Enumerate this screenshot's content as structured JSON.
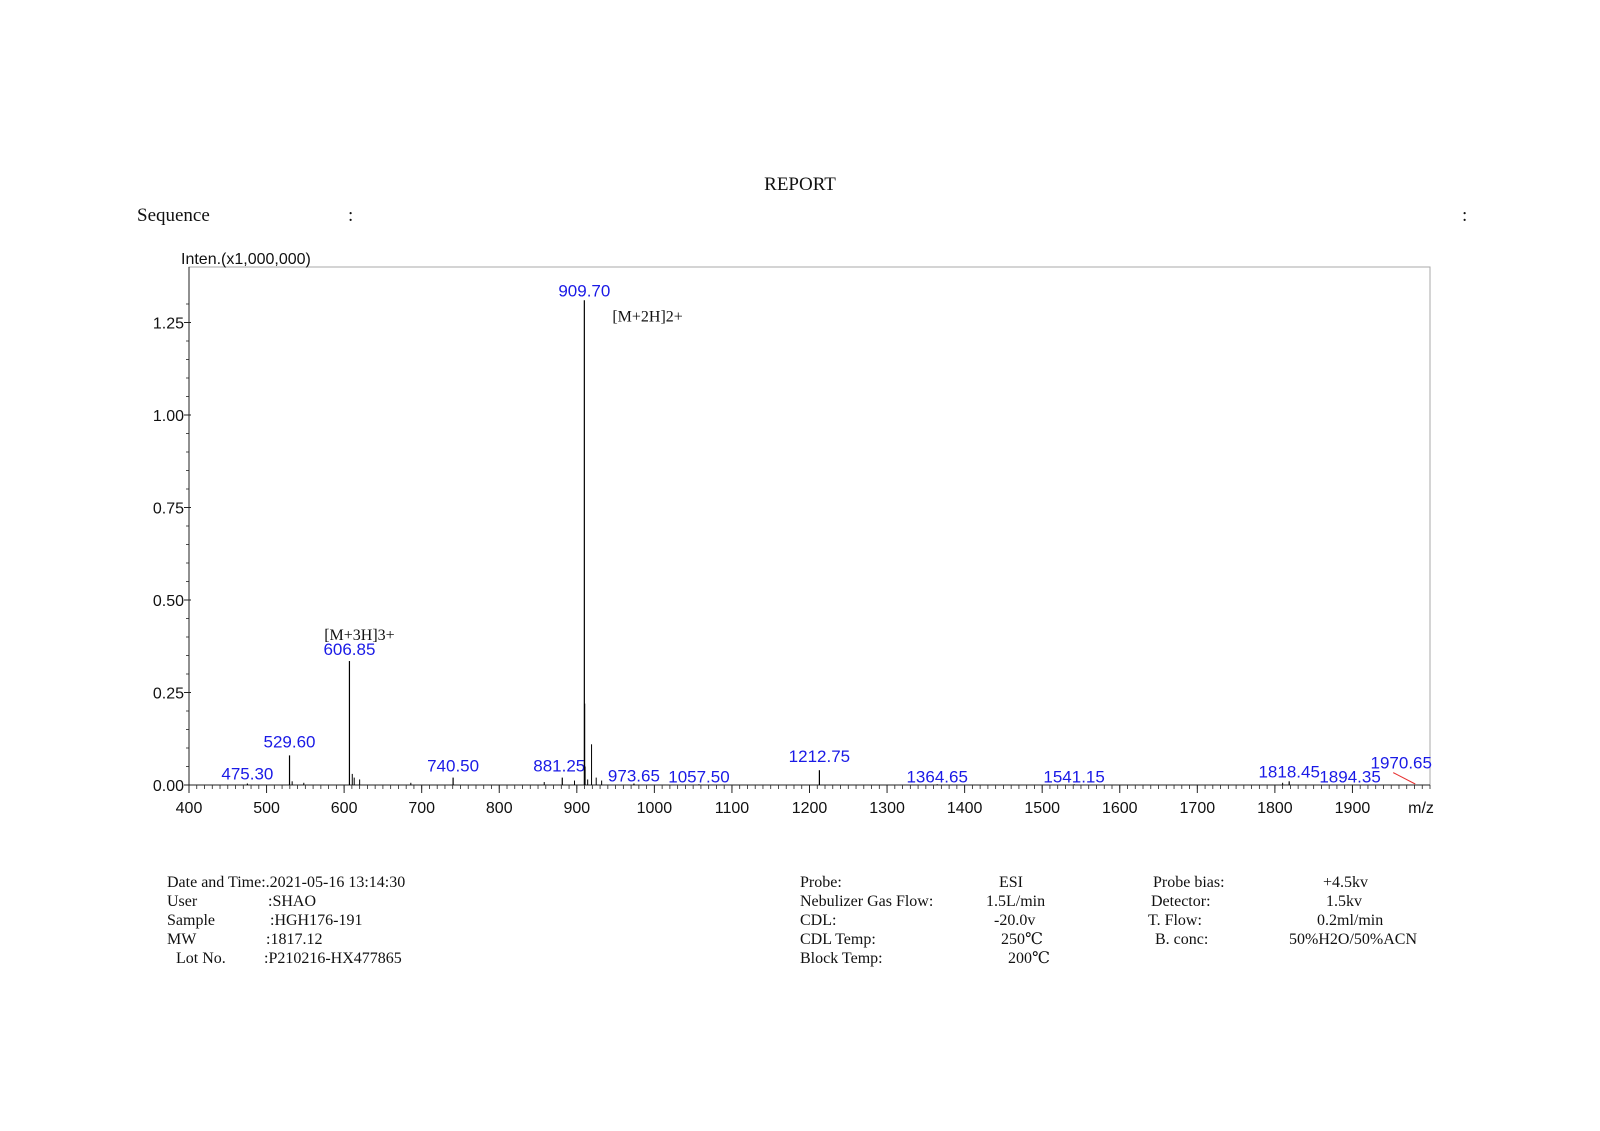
{
  "report": {
    "title": "REPORT",
    "sequence_label": "Sequence",
    "sequence_colon_left": ":",
    "sequence_colon_right": ":"
  },
  "colors": {
    "peak_label": "#1a1ae6",
    "axis": "#222222",
    "frame": "#aaaaaa",
    "peak": "#000000",
    "arrow": "#e63030"
  },
  "chart_data": {
    "type": "line",
    "subtype": "mass-spectrum-stick",
    "ylabel": "Inten.(x1,000,000)",
    "xlabel": "m/z",
    "xlim": [
      400,
      2000
    ],
    "ylim": [
      0,
      1.4
    ],
    "x_ticks": [
      "400",
      "500",
      "600",
      "700",
      "800",
      "900",
      "1000",
      "1100",
      "1200",
      "1300",
      "1400",
      "1500",
      "1600",
      "1700",
      "1800",
      "1900"
    ],
    "y_ticks": [
      "0.00",
      "0.25",
      "0.50",
      "0.75",
      "1.00",
      "1.25"
    ],
    "peaks": [
      {
        "mz": 475.3,
        "intensity": 0.004,
        "label": "475.30"
      },
      {
        "mz": 529.6,
        "intensity": 0.08,
        "label": "529.60"
      },
      {
        "mz": 606.85,
        "intensity": 0.335,
        "label": "606.85",
        "annotation": "[M+3H]3+"
      },
      {
        "mz": 740.5,
        "intensity": 0.02,
        "label": "740.50"
      },
      {
        "mz": 881.25,
        "intensity": 0.02,
        "label": "881.25"
      },
      {
        "mz": 909.7,
        "intensity": 1.31,
        "label": "909.70",
        "annotation": "[M+2H]2+"
      },
      {
        "mz": 973.65,
        "intensity": 0.004,
        "label": "973.65"
      },
      {
        "mz": 1057.5,
        "intensity": 0.002,
        "label": "1057.50"
      },
      {
        "mz": 1212.75,
        "intensity": 0.04,
        "label": "1212.75"
      },
      {
        "mz": 1364.65,
        "intensity": 0.002,
        "label": "1364.65"
      },
      {
        "mz": 1541.15,
        "intensity": 0.002,
        "label": "1541.15"
      },
      {
        "mz": 1818.45,
        "intensity": 0.01,
        "label": "1818.45"
      },
      {
        "mz": 1894.35,
        "intensity": 0.001,
        "label": "1894.35"
      },
      {
        "mz": 1970.65,
        "intensity": 0.001,
        "label": "1970.65"
      }
    ],
    "minor_peaks": [
      {
        "mz": 610.5,
        "intensity": 0.03
      },
      {
        "mz": 613.0,
        "intensity": 0.02
      },
      {
        "mz": 620.0,
        "intensity": 0.015
      },
      {
        "mz": 910.2,
        "intensity": 0.22
      },
      {
        "mz": 910.7,
        "intensity": 0.05
      },
      {
        "mz": 914.0,
        "intensity": 0.015
      },
      {
        "mz": 919.0,
        "intensity": 0.11
      },
      {
        "mz": 925.0,
        "intensity": 0.02
      },
      {
        "mz": 932.0,
        "intensity": 0.012
      },
      {
        "mz": 897.0,
        "intensity": 0.012
      },
      {
        "mz": 858.0,
        "intensity": 0.008
      },
      {
        "mz": 533.0,
        "intensity": 0.01
      },
      {
        "mz": 548.0,
        "intensity": 0.006
      },
      {
        "mz": 686.0,
        "intensity": 0.006
      },
      {
        "mz": 1810.0,
        "intensity": 0.006
      }
    ]
  },
  "info": {
    "left": [
      {
        "key": "Date and Time:",
        "value": ".2021-05-16    13:14:30"
      },
      {
        "key": "User",
        "value": ":SHAO"
      },
      {
        "key": "Sample",
        "value": ":HGH176-191"
      },
      {
        "key": "MW",
        "value": ":1817.12"
      },
      {
        "key": "Lot No.",
        "value": ":P210216-HX477865"
      }
    ],
    "middle": [
      {
        "key": "Probe:",
        "value": "ESI"
      },
      {
        "key": "Nebulizer Gas Flow:",
        "value": "1.5L/min"
      },
      {
        "key": "CDL:",
        "value": "-20.0v"
      },
      {
        "key": "CDL Temp:",
        "value": "250℃"
      },
      {
        "key": "Block Temp:",
        "value": "200℃"
      }
    ],
    "right": [
      {
        "key": "Probe bias:",
        "value": "+4.5kv"
      },
      {
        "key": "Detector:",
        "value": "1.5kv"
      },
      {
        "key": "T. Flow:",
        "value": "0.2ml/min"
      },
      {
        "key": "B. conc:",
        "value": "50%H2O/50%ACN"
      }
    ]
  }
}
